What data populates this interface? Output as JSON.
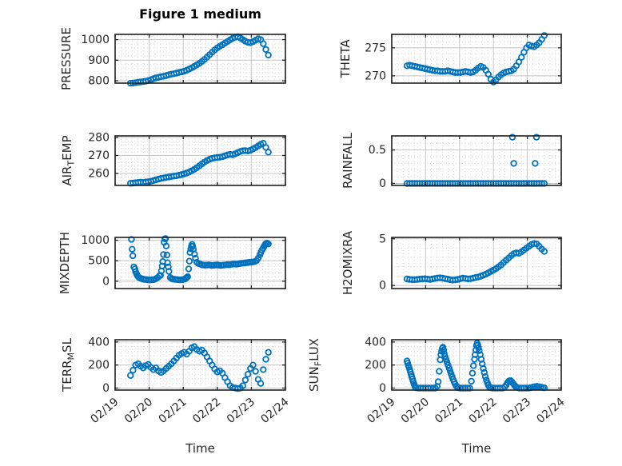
{
  "figure": {
    "title": "Figure 1 medium",
    "background": "#ffffff",
    "marker_color": "#0072BD",
    "axis_color": "#202020",
    "tick_label_color": "#262626",
    "major_grid_color": "#c4c4c4",
    "minor_grid_color": "#d2d2d2"
  },
  "chart_data": {
    "type": "scatter",
    "marker": "open-circle",
    "grid": "major-solid-minor-dotted",
    "title": "Figure 1 medium",
    "x_axis": {
      "label": "Time",
      "tick_labels": [
        "02/19",
        "02/20",
        "02/21",
        "02/22",
        "02/23",
        "02/24"
      ],
      "tick_values": [
        0,
        1,
        2,
        3,
        4,
        5
      ],
      "xlim": [
        0,
        5
      ],
      "minor_step": 0.1666667,
      "tick_label_rotation_deg": -40
    },
    "t_grid": {
      "t0": 0.45,
      "dt": 0.075,
      "count": 55
    },
    "subplots": [
      {
        "name": "PRESSURE",
        "row": 0,
        "col": 0,
        "ylabel_parts": [
          [
            "PRESSURE",
            false
          ]
        ],
        "yticks": [
          800,
          900,
          1000
        ],
        "ylim": [
          788.5,
          1025.5
        ],
        "minor_y": 20,
        "v": [
          788,
          789,
          791,
          793,
          794,
          796,
          798,
          801,
          805,
          810,
          814,
          817,
          820,
          822,
          825,
          829,
          832,
          834,
          837,
          840,
          843,
          846,
          851,
          857,
          863,
          870,
          877,
          885,
          894,
          904,
          915,
          927,
          939,
          950,
          960,
          968,
          975,
          983,
          991,
          999,
          1006,
          1011,
          1014,
          1008,
          1000,
          992,
          987,
          985,
          990,
          997,
          1004,
          1000,
          980,
          952,
          925
        ]
      },
      {
        "name": "THETA",
        "row": 0,
        "col": 1,
        "ylabel_parts": [
          [
            "THETA",
            false
          ]
        ],
        "yticks": [
          270,
          275
        ],
        "ylim": [
          268.7,
          277.4
        ],
        "minor_y": 1,
        "v": [
          271.8,
          271.9,
          271.8,
          271.7,
          271.6,
          271.5,
          271.4,
          271.3,
          271.2,
          271.1,
          271.0,
          270.9,
          270.9,
          270.8,
          270.8,
          270.8,
          270.9,
          270.8,
          270.7,
          270.6,
          270.6,
          270.6,
          270.7,
          270.8,
          270.7,
          270.6,
          270.7,
          271.0,
          271.4,
          271.7,
          271.5,
          271.0,
          270.3,
          269.4,
          268.9,
          269.3,
          269.8,
          270.2,
          270.5,
          270.7,
          270.8,
          270.9,
          271.2,
          271.8,
          272.5,
          273.3,
          274.2,
          275.0,
          275.5,
          275.3,
          275.2,
          275.5,
          275.9,
          276.5,
          277.2
        ]
      },
      {
        "name": "AIR_TEMP",
        "row": 1,
        "col": 0,
        "ylabel_parts": [
          [
            "AIR",
            false
          ],
          [
            "T",
            true
          ],
          [
            "EMP",
            false
          ]
        ],
        "yticks": [
          260,
          270,
          280
        ],
        "ylim": [
          253.3,
          280.9
        ],
        "minor_y": 2,
        "v": [
          254.5,
          254.6,
          254.8,
          255.0,
          255.1,
          255.0,
          255.2,
          255.4,
          255.6,
          256.0,
          256.4,
          256.8,
          257.2,
          257.5,
          257.8,
          258.0,
          258.3,
          258.5,
          258.7,
          259.0,
          259.3,
          259.7,
          260.2,
          260.8,
          261.5,
          262.3,
          263.2,
          264.2,
          265.3,
          266.3,
          267.2,
          267.9,
          268.4,
          268.7,
          268.9,
          269.0,
          269.3,
          269.8,
          270.3,
          270.6,
          270.4,
          270.9,
          271.6,
          272.2,
          272.6,
          272.7,
          272.5,
          272.9,
          273.6,
          274.4,
          275.3,
          276.2,
          276.8,
          274.5,
          271.8
        ]
      },
      {
        "name": "RAINFALL",
        "row": 1,
        "col": 1,
        "ylabel_parts": [
          [
            "RAINFALL",
            false
          ]
        ],
        "yticks": [
          0,
          0.5
        ],
        "ylim": [
          -0.03,
          0.71
        ],
        "minor_y": 0.1,
        "v": [
          0,
          0,
          0,
          0,
          0,
          0,
          0,
          0,
          0,
          0,
          0,
          0,
          0,
          0,
          0,
          0,
          0,
          0,
          0,
          0,
          0,
          0,
          0,
          0,
          0,
          0,
          0,
          0,
          0,
          0,
          0,
          0,
          0,
          0,
          0,
          0,
          0,
          0,
          0,
          0,
          0,
          0,
          0,
          0,
          0,
          0,
          0,
          0,
          0,
          0,
          0,
          0,
          0,
          0,
          0
        ],
        "extra": {
          "t": [
            3.56,
            3.6,
            4.23,
            4.27
          ],
          "v": [
            0.69,
            0.3,
            0.3,
            0.69
          ]
        }
      },
      {
        "name": "MIXDEPTH",
        "row": 2,
        "col": 0,
        "ylabel_parts": [
          [
            "MIXDEPTH",
            false
          ]
        ],
        "yticks": [
          0,
          500,
          1000
        ],
        "ylim": [
          -180,
          1070
        ],
        "minor_y": 100,
        "t": [
          0.48,
          0.5,
          0.52,
          0.55,
          0.58,
          0.6,
          0.63,
          0.65,
          0.68,
          0.7,
          0.75,
          0.8,
          0.85,
          0.9,
          0.95,
          1.0,
          1.05,
          1.1,
          1.15,
          1.2,
          1.25,
          1.3,
          1.33,
          1.36,
          1.38,
          1.4,
          1.42,
          1.44,
          1.46,
          1.48,
          1.5,
          1.52,
          1.54,
          1.56,
          1.58,
          1.62,
          1.66,
          1.7,
          1.75,
          1.8,
          1.85,
          1.9,
          1.95,
          2.0,
          2.05,
          2.08,
          2.1,
          2.13,
          2.16,
          2.18,
          2.2,
          2.22,
          2.24,
          2.26,
          2.28,
          2.3,
          2.33,
          2.36,
          2.4,
          2.45,
          2.5,
          2.55,
          2.6,
          2.65,
          2.7,
          2.75,
          2.8,
          2.85,
          2.9,
          2.95,
          3.0,
          3.05,
          3.1,
          3.15,
          3.2,
          3.25,
          3.3,
          3.35,
          3.4,
          3.45,
          3.5,
          3.55,
          3.6,
          3.65,
          3.7,
          3.75,
          3.8,
          3.85,
          3.9,
          3.95,
          4.0,
          4.05,
          4.1,
          4.15,
          4.2,
          4.25,
          4.28,
          4.31,
          4.34,
          4.37,
          4.4,
          4.43,
          4.46,
          4.5
        ],
        "v": [
          1020,
          780,
          620,
          350,
          300,
          230,
          180,
          140,
          110,
          90,
          70,
          55,
          45,
          40,
          35,
          30,
          30,
          35,
          40,
          60,
          90,
          130,
          140,
          250,
          370,
          480,
          650,
          950,
          1035,
          1040,
          860,
          640,
          450,
          350,
          240,
          90,
          60,
          50,
          45,
          40,
          35,
          30,
          35,
          40,
          50,
          70,
          90,
          110,
          300,
          490,
          700,
          790,
          860,
          900,
          850,
          780,
          660,
          560,
          460,
          430,
          420,
          400,
          395,
          390,
          395,
          400,
          390,
          385,
          390,
          395,
          400,
          390,
          385,
          390,
          395,
          400,
          405,
          400,
          410,
          415,
          420,
          415,
          420,
          430,
          435,
          440,
          445,
          450,
          455,
          460,
          465,
          470,
          480,
          500,
          560,
          640,
          700,
          760,
          800,
          850,
          890,
          920,
          930,
          910
        ]
      },
      {
        "name": "H2OMIXRA",
        "row": 2,
        "col": 1,
        "ylabel_parts": [
          [
            "H2OMIXRA",
            false
          ]
        ],
        "yticks": [
          0,
          5
        ],
        "ylim": [
          -0.33,
          5.15
        ],
        "minor_y": 1,
        "v": [
          0.7,
          0.65,
          0.62,
          0.62,
          0.65,
          0.68,
          0.7,
          0.72,
          0.68,
          0.65,
          0.7,
          0.75,
          0.8,
          0.82,
          0.78,
          0.72,
          0.68,
          0.62,
          0.58,
          0.6,
          0.65,
          0.72,
          0.78,
          0.75,
          0.7,
          0.72,
          0.78,
          0.85,
          0.9,
          1.0,
          1.1,
          1.2,
          1.35,
          1.5,
          1.65,
          1.8,
          2.0,
          2.2,
          2.45,
          2.7,
          2.95,
          3.2,
          3.4,
          3.5,
          3.45,
          3.6,
          3.8,
          4.0,
          4.2,
          4.4,
          4.5,
          4.45,
          4.2,
          3.9,
          3.65
        ]
      },
      {
        "name": "TERR_MSL",
        "row": 3,
        "col": 0,
        "ylabel_parts": [
          [
            "TERR",
            false
          ],
          [
            "M",
            true
          ],
          [
            "SL",
            false
          ]
        ],
        "yticks": [
          0,
          200,
          400
        ],
        "ylim": [
          -17.4,
          420
        ],
        "minor_y": 40,
        "v": [
          110,
          155,
          200,
          210,
          190,
          175,
          195,
          205,
          180,
          160,
          175,
          150,
          135,
          150,
          170,
          190,
          210,
          235,
          260,
          285,
          300,
          310,
          295,
          320,
          350,
          360,
          335,
          320,
          330,
          305,
          270,
          235,
          200,
          165,
          140,
          150,
          130,
          90,
          55,
          20,
          5,
          0,
          -5,
          0,
          20,
          70,
          120,
          170,
          200,
          145,
          75,
          40,
          160,
          250,
          310
        ]
      },
      {
        "name": "SUN_FLUX",
        "row": 3,
        "col": 1,
        "ylabel_parts": [
          [
            "SUN",
            false
          ],
          [
            "F",
            true
          ],
          [
            "LUX",
            false
          ]
        ],
        "yticks": [
          0,
          200,
          400
        ],
        "ylim": [
          -17.4,
          420
        ],
        "minor_y": 40,
        "t": [
          0.45,
          0.47,
          0.49,
          0.51,
          0.53,
          0.55,
          0.57,
          0.59,
          0.61,
          0.63,
          0.65,
          0.67,
          0.69,
          0.72,
          0.78,
          0.85,
          0.92,
          1.0,
          1.08,
          1.15,
          1.22,
          1.28,
          1.34,
          1.37,
          1.4,
          1.43,
          1.45,
          1.47,
          1.49,
          1.51,
          1.53,
          1.55,
          1.57,
          1.6,
          1.63,
          1.66,
          1.69,
          1.72,
          1.75,
          1.78,
          1.81,
          1.84,
          1.87,
          1.9,
          1.93,
          1.97,
          2.03,
          2.1,
          2.17,
          2.24,
          2.3,
          2.35,
          2.38,
          2.41,
          2.44,
          2.46,
          2.48,
          2.5,
          2.52,
          2.54,
          2.56,
          2.58,
          2.61,
          2.64,
          2.67,
          2.7,
          2.73,
          2.76,
          2.79,
          2.82,
          2.85,
          2.88,
          2.92,
          2.98,
          3.05,
          3.12,
          3.2,
          3.27,
          3.33,
          3.38,
          3.42,
          3.46,
          3.5,
          3.54,
          3.58,
          3.62,
          3.66,
          3.7,
          3.76,
          3.83,
          3.9,
          3.97,
          4.04,
          4.1,
          4.16,
          4.22,
          4.28,
          4.34,
          4.4,
          4.46,
          4.5
        ],
        "v": [
          235,
          215,
          195,
          180,
          160,
          140,
          120,
          100,
          80,
          60,
          40,
          25,
          10,
          2,
          0,
          0,
          0,
          0,
          0,
          0,
          0,
          0,
          15,
          55,
          145,
          245,
          290,
          320,
          345,
          355,
          330,
          300,
          275,
          250,
          225,
          200,
          175,
          150,
          125,
          100,
          75,
          55,
          35,
          18,
          8,
          2,
          0,
          0,
          0,
          0,
          0,
          60,
          130,
          195,
          250,
          290,
          330,
          370,
          390,
          375,
          350,
          325,
          290,
          250,
          210,
          170,
          135,
          100,
          70,
          45,
          25,
          10,
          3,
          0,
          0,
          0,
          0,
          0,
          10,
          30,
          50,
          62,
          65,
          55,
          40,
          25,
          12,
          5,
          0,
          0,
          0,
          0,
          0,
          3,
          8,
          12,
          15,
          12,
          8,
          4,
          2
        ]
      }
    ]
  }
}
